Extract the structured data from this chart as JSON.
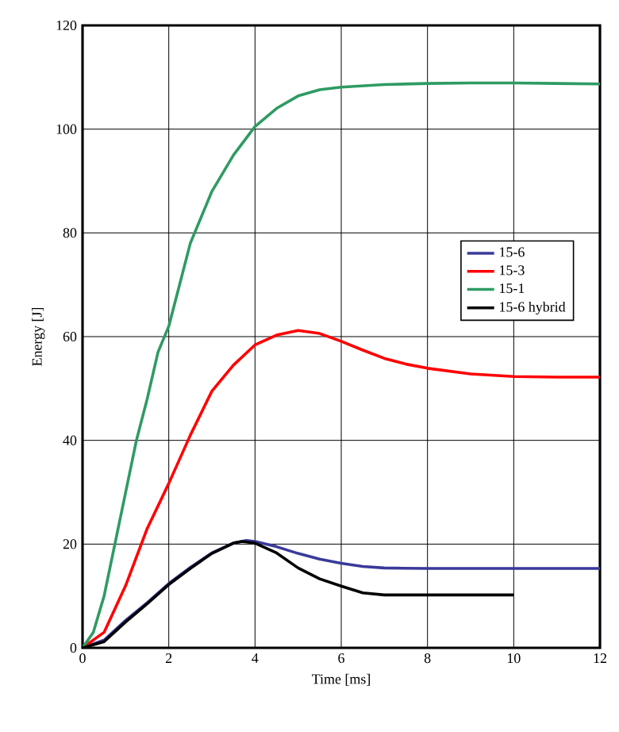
{
  "chart_data": {
    "type": "line",
    "xlabel": "Time [ms]",
    "ylabel": "Energy [J]",
    "xlim": [
      0,
      12
    ],
    "ylim": [
      0,
      120
    ],
    "xticks": [
      0,
      2,
      4,
      6,
      8,
      10,
      12
    ],
    "yticks": [
      0,
      20,
      40,
      60,
      80,
      100,
      120
    ],
    "grid": true,
    "legend": "right",
    "marker": "none",
    "line_style": "solid",
    "series": [
      {
        "name": "15-6",
        "color": "#3a3a9a",
        "x": [
          0,
          0.5,
          1,
          1.5,
          2,
          2.5,
          3,
          3.5,
          3.8,
          4,
          4.5,
          5,
          5.5,
          6,
          6.5,
          7,
          8,
          9,
          10,
          11,
          12
        ],
        "values": [
          0,
          1.5,
          5.3,
          8.7,
          12.4,
          15.5,
          18.3,
          20.2,
          20.7,
          20.5,
          19.5,
          18.2,
          17.1,
          16.3,
          15.7,
          15.4,
          15.3,
          15.3,
          15.3,
          15.3,
          15.3
        ]
      },
      {
        "name": "15-3",
        "color": "#ff0000",
        "x": [
          0,
          0.5,
          1,
          1.5,
          2,
          2.5,
          3,
          3.5,
          4,
          4.5,
          5,
          5.5,
          6,
          6.5,
          7,
          7.5,
          8,
          9,
          10,
          11,
          12
        ],
        "values": [
          0,
          3,
          12,
          23,
          31.7,
          41,
          49.5,
          54.5,
          58.4,
          60.3,
          61.2,
          60.6,
          59.1,
          57.4,
          55.8,
          54.7,
          53.9,
          52.8,
          52.3,
          52.2,
          52.2
        ]
      },
      {
        "name": "15-1",
        "color": "#2e9b63",
        "x": [
          0,
          0.25,
          0.5,
          0.75,
          1,
          1.25,
          1.5,
          1.75,
          2,
          2.5,
          3,
          3.5,
          4,
          4.5,
          5,
          5.5,
          6,
          7,
          8,
          9,
          10,
          11,
          12
        ],
        "values": [
          0,
          3,
          10,
          20,
          30,
          40,
          48,
          57,
          62,
          78,
          88,
          95,
          100.5,
          104,
          106.4,
          107.6,
          108.1,
          108.6,
          108.8,
          108.9,
          108.9,
          108.8,
          108.7
        ]
      },
      {
        "name": "15-6 hybrid",
        "color": "#000000",
        "x": [
          0,
          0.5,
          1,
          1.5,
          2,
          2.5,
          3,
          3.5,
          3.7,
          4,
          4.5,
          5,
          5.5,
          6,
          6.5,
          7,
          8,
          9,
          10
        ],
        "values": [
          0,
          1.2,
          5,
          8.5,
          12.2,
          15.3,
          18.2,
          20.2,
          20.5,
          20.2,
          18.3,
          15.4,
          13.3,
          11.9,
          10.6,
          10.2,
          10.2,
          10.2,
          10.2
        ]
      }
    ]
  }
}
